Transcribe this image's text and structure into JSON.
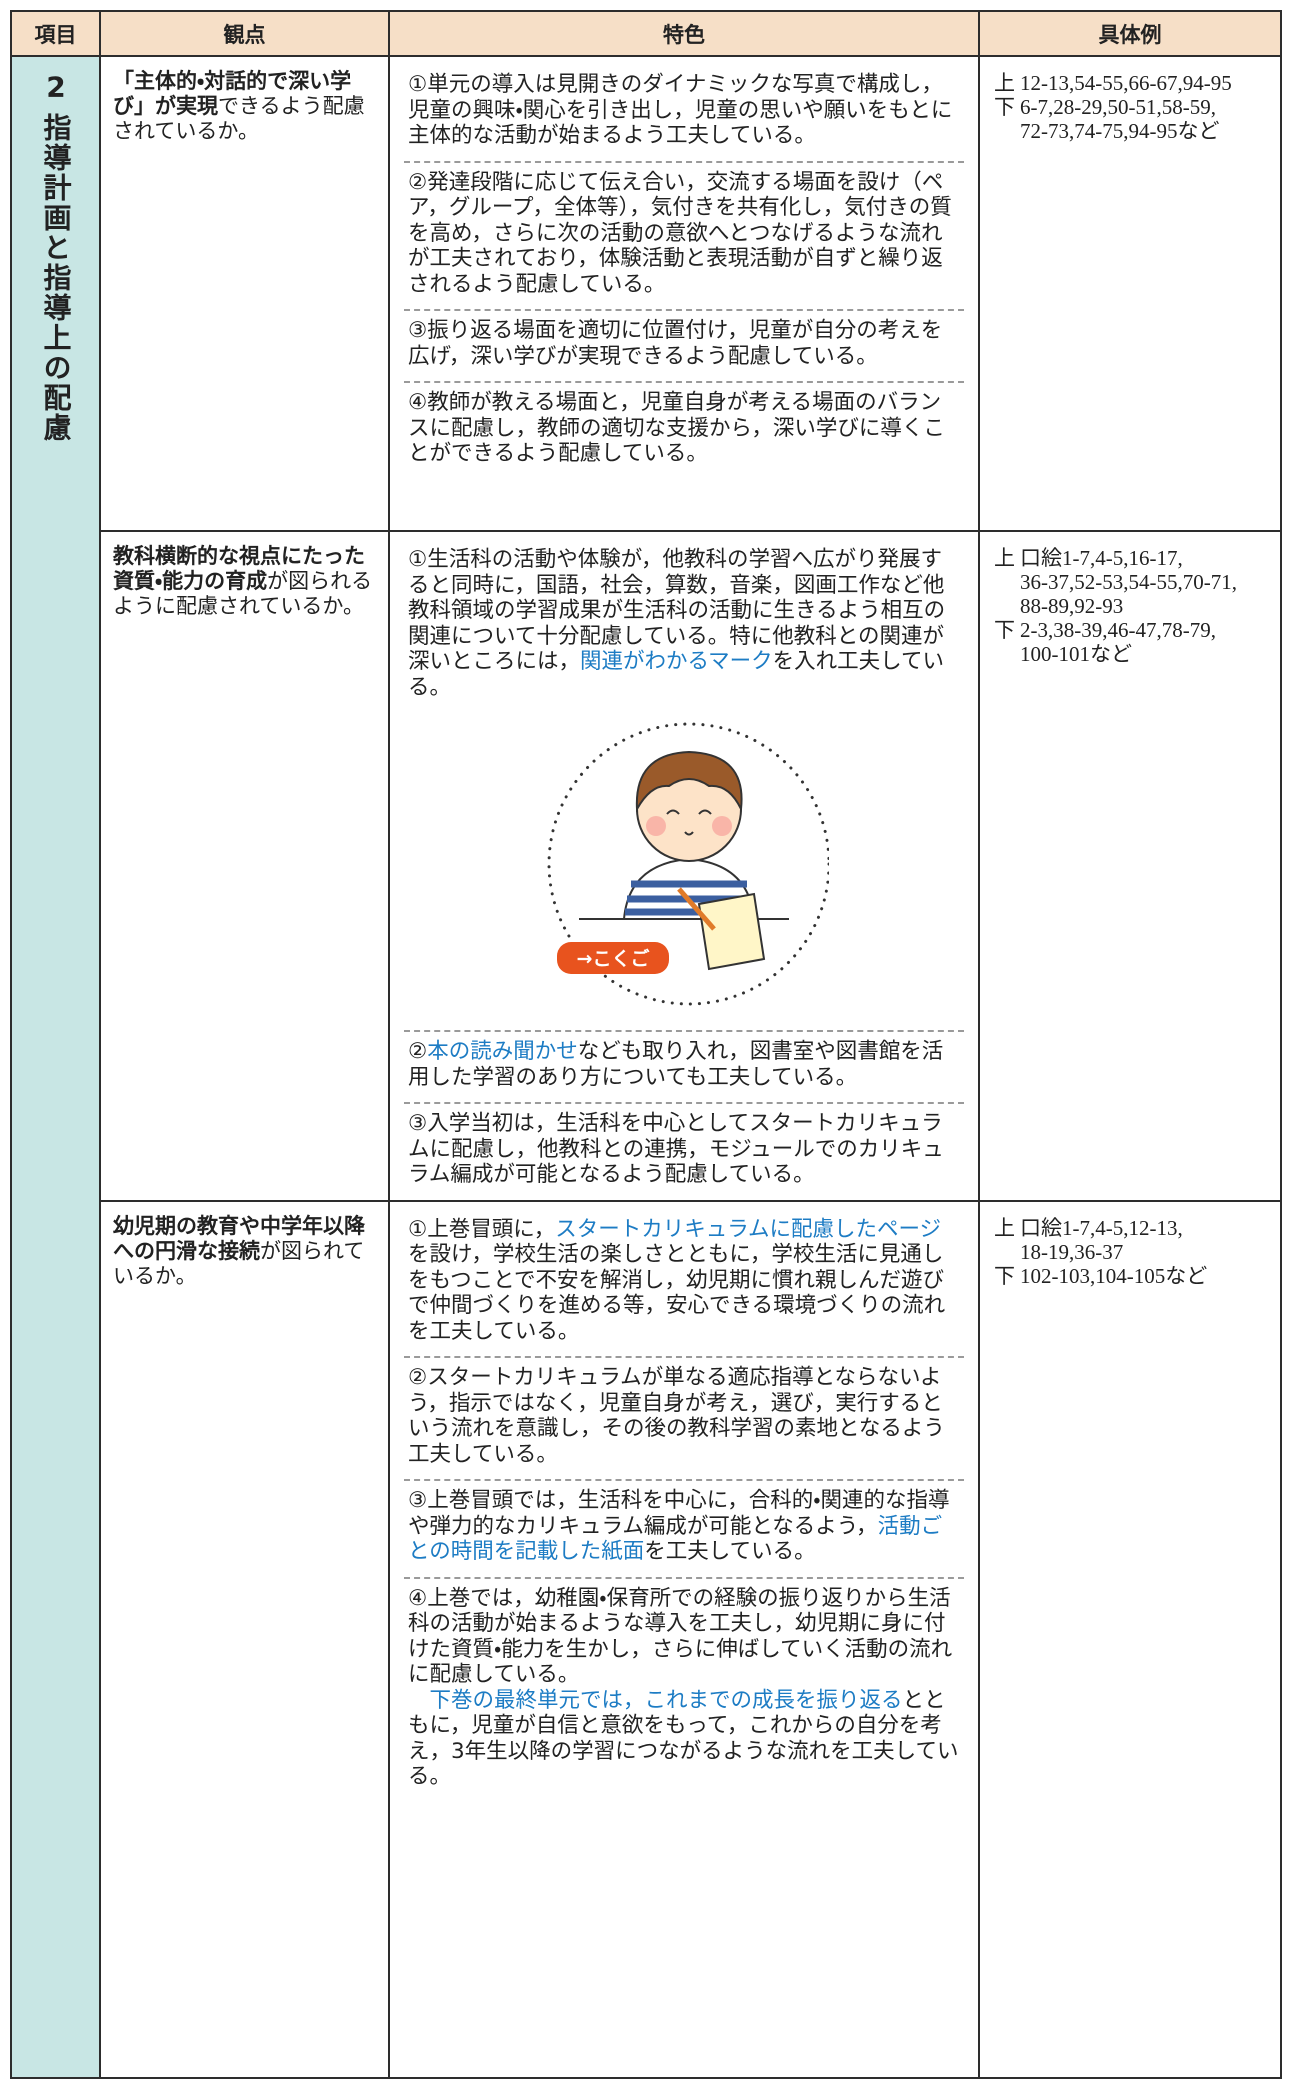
{
  "header": {
    "item": "項目",
    "viewpoint": "観点",
    "features": "特色",
    "examples": "具体例"
  },
  "section": {
    "number": "2",
    "title": "指導計画と指導上の配慮"
  },
  "rows": [
    {
      "viewpoint": [
        {
          "text": "「主体的・対話的で深い学び」が実現",
          "bold": true
        },
        {
          "text": "できるよう配慮されているか。"
        }
      ],
      "features": [
        {
          "paragraphs": [
            [
              {
                "text": "①単元の導入は見開きのダイナミックな写真で構成し，児童の興味・関心を引き出し，児童の思いや願いをもとに主体的な活動が始まるよう工夫している。"
              }
            ]
          ]
        },
        {
          "paragraphs": [
            [
              {
                "text": "②発達段階に応じて伝え合い，交流する場面を設け（ペア，グループ，全体等），気付きを共有化し，気付きの質を高め，さらに次の活動の意欲へとつなげるような流れが工夫されており，体験活動と表現活動が自ずと繰り返されるよう配慮している。"
              }
            ]
          ]
        },
        {
          "paragraphs": [
            [
              {
                "text": "③振り返る場面を適切に位置付け，児童が自分の考えを広げ，深い学びが実現できるよう配慮している。"
              }
            ]
          ]
        },
        {
          "paragraphs": [
            [
              {
                "text": "④教師が教える場面と，児童自身が考える場面のバランスに配慮し，教師の適切な支援から，深い学びに導くことができるよう配慮している。"
              }
            ]
          ]
        }
      ],
      "examples": [
        {
          "volume": "上",
          "lines": [
            "12-13,54-55,66-67,94-95"
          ]
        },
        {
          "volume": "下",
          "lines": [
            "6-7,28-29,50-51,58-59,",
            "72-73,74-75,94-95など"
          ]
        }
      ]
    },
    {
      "viewpoint": [
        {
          "text": "教科横断的な視点にたった資質・能力の育成",
          "bold": true
        },
        {
          "text": "が図られるように配慮されているか。"
        }
      ],
      "features": [
        {
          "paragraphs": [
            [
              {
                "text": "①生活科の活動や体験が，他教科の学習へ広がり発展すると同時に，国語，社会，算数，音楽，図画工作など他教科領域の学習成果が生活科の活動に生きるよう相互の関連について十分配慮している。特に他教科との関連が深いところには，"
              },
              {
                "text": "関連がわかるマーク",
                "color": "#1d7cc4"
              },
              {
                "text": "を入れ工夫している。"
              }
            ]
          ],
          "illustration_label": "→こくご"
        },
        {
          "paragraphs": [
            [
              {
                "text": "②"
              },
              {
                "text": "本の読み聞かせ",
                "color": "#1d7cc4"
              },
              {
                "text": "なども取り入れ，図書室や図書館を活用した学習のあり方についても工夫している。"
              }
            ]
          ]
        },
        {
          "paragraphs": [
            [
              {
                "text": "③入学当初は，生活科を中心としてスタートカリキュラムに配慮し，他教科との連携，モジュールでのカリキュラム編成が可能となるよう配慮している。"
              }
            ]
          ]
        }
      ],
      "examples": [
        {
          "volume": "上",
          "lines": [
            "口絵1-7,4-5,16-17,",
            "36-37,52-53,54-55,70-71,",
            "88-89,92-93"
          ]
        },
        {
          "volume": "下",
          "lines": [
            "2-3,38-39,46-47,78-79,",
            "100-101など"
          ]
        }
      ]
    },
    {
      "viewpoint": [
        {
          "text": "幼児期の教育や中学年以降への円滑な接続",
          "bold": true
        },
        {
          "text": "が図られているか。"
        }
      ],
      "features": [
        {
          "paragraphs": [
            [
              {
                "text": "①上巻冒頭に，"
              },
              {
                "text": "スタートカリキュラムに配慮したページ",
                "color": "#1d7cc4"
              },
              {
                "text": "を設け，学校生活の楽しさとともに，学校生活に見通しをもつことで不安を解消し，幼児期に慣れ親しんだ遊びで仲間づくりを進める等，安心できる環境づくりの流れを工夫している。"
              }
            ]
          ]
        },
        {
          "paragraphs": [
            [
              {
                "text": "②スタートカリキュラムが単なる適応指導とならないよう，指示ではなく，児童自身が考え，選び，実行するという流れを意識し，その後の教科学習の素地となるよう工夫している。"
              }
            ]
          ]
        },
        {
          "paragraphs": [
            [
              {
                "text": "③上巻冒頭では，生活科を中心に，合科的・関連的な指導や弾力的なカリキュラム編成が可能となるよう，"
              },
              {
                "text": "活動ごとの時間を記載した紙面",
                "color": "#1d7cc4"
              },
              {
                "text": "を工夫している。"
              }
            ]
          ]
        },
        {
          "paragraphs": [
            [
              {
                "text": "④上巻では，幼稚園・保育所での経験の振り返りから生活科の活動が始まるような導入を工夫し，幼児期に身に付けた資質・能力を生かし，さらに伸ばしていく活動の流れに配慮している。"
              }
            ],
            [
              {
                "text": "下巻の最終単元では，これまでの成長を振り返る",
                "color": "#1d7cc4"
              },
              {
                "text": "とともに，児童が自信と意欲をもって，これからの自分を考え，3年生以降の学習につながるような流れを工夫している。"
              }
            ]
          ]
        }
      ],
      "examples": [
        {
          "volume": "上",
          "lines": [
            "口絵1-7,4-5,12-13,",
            "18-19,36-37"
          ]
        },
        {
          "volume": "下",
          "lines": [
            "102-103,104-105など"
          ]
        }
      ]
    }
  ]
}
